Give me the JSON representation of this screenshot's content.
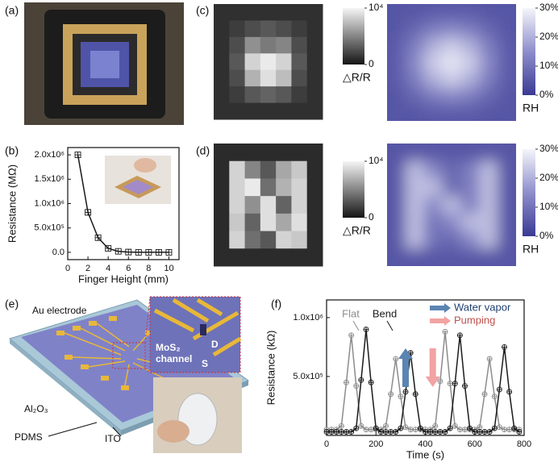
{
  "figure": {
    "panel_labels": [
      "(a)",
      "(b)",
      "(c)",
      "(d)",
      "(e)",
      "(f)"
    ],
    "schematic_labels": [
      "Au electrode",
      "MoS₂",
      "channel",
      "D",
      "S",
      "Al₂O₃",
      "PDMS",
      "ITO"
    ]
  },
  "chart_data": [
    {
      "type": "line",
      "xlabel": "Finger Height (mm)",
      "ylabel": "Resistance (MΩ)",
      "x": [
        1,
        2,
        3,
        4,
        5,
        6,
        7,
        8,
        9,
        10
      ],
      "values": [
        2000000,
        820000,
        300000,
        80000,
        20000,
        5000,
        0,
        0,
        0,
        0
      ],
      "color": "#1a1a1a",
      "marker": "square-cross",
      "xlim": [
        0,
        11
      ],
      "xticks": [
        0,
        2,
        4,
        6,
        8,
        10
      ],
      "ylim": [
        -150000,
        2150000
      ],
      "yticks": [
        {
          "value": 0,
          "label": "0.0"
        },
        {
          "value": 500000,
          "label": "5.0x10⁵"
        },
        {
          "value": 1000000,
          "label": "1.0x10⁶"
        },
        {
          "value": 1500000,
          "label": "1.5x10⁶"
        },
        {
          "value": 2000000,
          "label": "2.0x10⁶"
        }
      ]
    },
    {
      "type": "heatmap",
      "colorbar_label": "△R/R",
      "colormap": [
        "#151515",
        "#f5f5f5"
      ],
      "clim": [
        0,
        10000
      ],
      "cticks": [
        {
          "value": 10000,
          "label": "10⁴"
        },
        0
      ],
      "smooth": false,
      "values": [
        [
          1200,
          1200,
          1200,
          1200,
          1200,
          1200,
          1200
        ],
        [
          1200,
          1800,
          2500,
          3000,
          2500,
          1800,
          1200
        ],
        [
          1200,
          2500,
          5500,
          4500,
          5000,
          2500,
          1200
        ],
        [
          1200,
          3000,
          8500,
          9500,
          8500,
          3000,
          1200
        ],
        [
          1200,
          2500,
          7000,
          9000,
          7500,
          2500,
          1200
        ],
        [
          1200,
          1800,
          3000,
          3500,
          3000,
          1800,
          1200
        ],
        [
          1200,
          1200,
          1200,
          1200,
          1200,
          1200,
          1200
        ]
      ]
    },
    {
      "type": "heatmap",
      "colorbar_label": "RH",
      "colormap": [
        "#3a3a94",
        "#8e8ecb",
        "#f5f5fb"
      ],
      "clim": [
        0,
        30
      ],
      "cticks": [
        {
          "value": 30,
          "label": "30%"
        },
        {
          "value": 20,
          "label": "20%"
        },
        {
          "value": 10,
          "label": "10%"
        },
        {
          "value": 0,
          "label": "0%"
        }
      ],
      "smooth": true,
      "values": [
        [
          5,
          5,
          6,
          6,
          6,
          5,
          5
        ],
        [
          5,
          8,
          12,
          14,
          12,
          8,
          5
        ],
        [
          6,
          12,
          20,
          24,
          20,
          12,
          6
        ],
        [
          6,
          14,
          24,
          28,
          24,
          14,
          6
        ],
        [
          6,
          12,
          20,
          24,
          20,
          12,
          6
        ],
        [
          5,
          8,
          12,
          14,
          12,
          8,
          5
        ],
        [
          5,
          5,
          6,
          6,
          6,
          5,
          5
        ]
      ]
    },
    {
      "type": "heatmap",
      "colorbar_label": "△R/R",
      "colormap": [
        "#151515",
        "#f5f5f5"
      ],
      "clim": [
        0,
        10000
      ],
      "cticks": [
        {
          "value": 10000,
          "label": "10⁴"
        },
        0
      ],
      "smooth": false,
      "values": [
        [
          1000,
          1000,
          1000,
          1000,
          1000,
          1000,
          1000
        ],
        [
          1000,
          8500,
          5000,
          3000,
          6500,
          8000,
          1000
        ],
        [
          1000,
          8500,
          9500,
          4000,
          7000,
          8500,
          1000
        ],
        [
          1000,
          8500,
          5500,
          9000,
          3500,
          8500,
          1000
        ],
        [
          1000,
          8000,
          3500,
          9000,
          6500,
          9000,
          1000
        ],
        [
          1000,
          8500,
          4000,
          3000,
          8500,
          8000,
          1000
        ],
        [
          1000,
          1000,
          1000,
          1000,
          1000,
          1000,
          1000
        ]
      ]
    },
    {
      "type": "heatmap",
      "colorbar_label": "RH",
      "colormap": [
        "#3a3a94",
        "#8e8ecb",
        "#f5f5fb"
      ],
      "clim": [
        0,
        30
      ],
      "cticks": [
        {
          "value": 30,
          "label": "30%"
        },
        {
          "value": 20,
          "label": "20%"
        },
        {
          "value": 10,
          "label": "10%"
        },
        {
          "value": 0,
          "label": "0%"
        }
      ],
      "smooth": true,
      "values": [
        [
          5,
          5,
          5,
          5,
          5,
          5,
          5
        ],
        [
          5,
          22,
          14,
          8,
          12,
          22,
          5
        ],
        [
          5,
          22,
          22,
          8,
          12,
          22,
          5
        ],
        [
          5,
          22,
          14,
          22,
          12,
          22,
          5
        ],
        [
          5,
          22,
          10,
          14,
          22,
          22,
          5
        ],
        [
          5,
          22,
          10,
          8,
          14,
          22,
          5
        ],
        [
          5,
          5,
          5,
          5,
          5,
          5,
          5
        ]
      ]
    },
    {
      "type": "line",
      "xlabel": "Time (s)",
      "ylabel": "Resistance (kΩ)",
      "marker": "circle-cross",
      "annotations": [
        "Flat",
        "Bend"
      ],
      "arrows": [
        {
          "label": "Water vapor",
          "color": "#5b84b1"
        },
        {
          "label": "Pumping",
          "color": "#f2a3a3"
        }
      ],
      "x": [
        0,
        20,
        40,
        60,
        80,
        100,
        120,
        140,
        160,
        180,
        200,
        220,
        240,
        260,
        280,
        300,
        320,
        340,
        360,
        380,
        400,
        420,
        440,
        460,
        480,
        500,
        520,
        540,
        560,
        580,
        600,
        620,
        640,
        660,
        680,
        700,
        720,
        740,
        760,
        780
      ],
      "series": [
        {
          "name": "Flat",
          "color": "#8c8c8c",
          "values": [
            50000,
            50000,
            50000,
            80000,
            450000,
            850000,
            420000,
            80000,
            50000,
            50000,
            50000,
            50000,
            80000,
            350000,
            650000,
            330000,
            70000,
            50000,
            50000,
            50000,
            50000,
            50000,
            80000,
            460000,
            880000,
            440000,
            80000,
            50000,
            50000,
            50000,
            50000,
            70000,
            350000,
            650000,
            330000,
            70000,
            50000,
            50000,
            50000,
            50000
          ]
        },
        {
          "name": "Bend",
          "color": "#1a1a1a",
          "values": [
            30000,
            30000,
            30000,
            30000,
            30000,
            30000,
            60000,
            470000,
            900000,
            450000,
            60000,
            30000,
            30000,
            30000,
            30000,
            60000,
            370000,
            700000,
            350000,
            60000,
            30000,
            30000,
            30000,
            30000,
            30000,
            60000,
            440000,
            850000,
            420000,
            60000,
            30000,
            30000,
            30000,
            30000,
            60000,
            390000,
            750000,
            370000,
            60000,
            30000
          ]
        }
      ],
      "xlim": [
        0,
        800
      ],
      "xticks": [
        0,
        200,
        400,
        600,
        800
      ],
      "ylim": [
        0,
        1150000
      ],
      "yticks": [
        {
          "value": 500000,
          "label": "5.0x10⁵"
        },
        {
          "value": 1000000,
          "label": "1.0x10⁶"
        }
      ]
    }
  ]
}
